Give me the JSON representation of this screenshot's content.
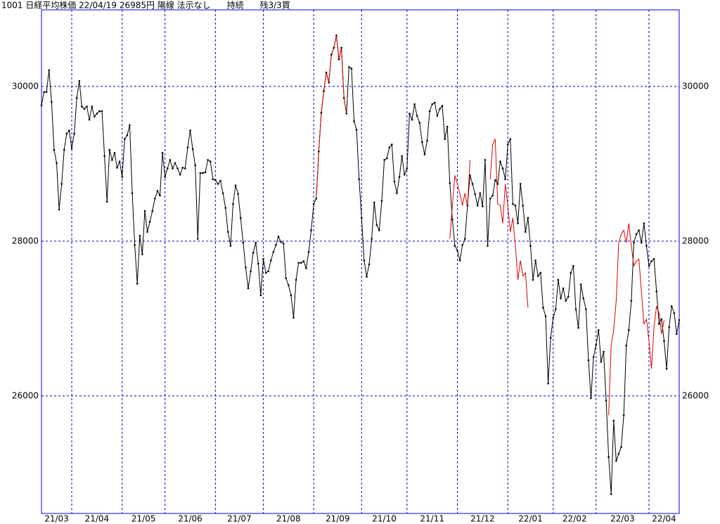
{
  "chart_data": {
    "type": "line",
    "title": "1001 日経平均株価 22/04/19 26985円 陽線 法示なし      持続      残3/3買",
    "ylim": [
      24480,
      30990
    ],
    "yticks": [
      26000,
      28000,
      30000
    ],
    "xlim": [
      0,
      253
    ],
    "xticks": [
      {
        "value": 0,
        "label": "21/03"
      },
      {
        "value": 12,
        "label": "21/04"
      },
      {
        "value": 32,
        "label": "21/05"
      },
      {
        "value": 49,
        "label": "21/06"
      },
      {
        "value": 69,
        "label": "21/07"
      },
      {
        "value": 88,
        "label": "21/08"
      },
      {
        "value": 108,
        "label": "21/09"
      },
      {
        "value": 127,
        "label": "21/10"
      },
      {
        "value": 145,
        "label": "21/11"
      },
      {
        "value": 165,
        "label": "21/12"
      },
      {
        "value": 185,
        "label": "22/01"
      },
      {
        "value": 203,
        "label": "22/02"
      },
      {
        "value": 220,
        "label": "22/03"
      },
      {
        "value": 241,
        "label": "22/04"
      }
    ],
    "grid": true,
    "grid_color": "#0000cc",
    "frame_color": "#0000ff",
    "dot_color": "#000000",
    "series": [
      {
        "color": "#000000",
        "values": [
          29755,
          29927,
          29930,
          30210,
          29800,
          29180,
          29010,
          28410,
          28740,
          29180,
          29390,
          29430,
          29200,
          29390,
          29850,
          30070,
          29740,
          29710,
          29740,
          29570,
          29740,
          29610,
          29650,
          29680,
          29680,
          29100,
          28510,
          29180,
          29050,
          29140,
          28950,
          29030,
          28830,
          29320,
          29370,
          29500,
          28620,
          27950,
          27450,
          28070,
          27830,
          28390,
          28120,
          28250,
          28390,
          28550,
          28650,
          28590,
          29140,
          28830,
          28940,
          29050,
          28940,
          29010,
          28940,
          28860,
          28950,
          28940,
          29210,
          29430,
          29190,
          28980,
          28030,
          28880,
          28880,
          28890,
          29050,
          29030,
          28800,
          28790,
          28740,
          28780,
          28620,
          28430,
          28120,
          27940,
          28480,
          28720,
          28610,
          28300,
          27980,
          27660,
          27390,
          27610,
          27850,
          27980,
          27710,
          27300,
          27770,
          27590,
          27610,
          27750,
          27860,
          27950,
          28060,
          27990,
          27970,
          27520,
          27430,
          27300,
          27010,
          27500,
          27720,
          27720,
          27740,
          27650,
          27860,
          28140,
          28480,
          28550,
          29160,
          29660,
          29940,
          30180,
          30050,
          30410,
          30500,
          30660,
          30350,
          30500,
          29850,
          29650,
          30250,
          30230,
          29550,
          29440,
          28800,
          28300,
          27750,
          27540,
          27700,
          28030,
          28500,
          28210,
          28140,
          28520,
          29050,
          29070,
          29210,
          29250,
          28770,
          28620,
          28830,
          29100,
          28860,
          28940,
          29650,
          29570,
          29770,
          29620,
          29530,
          29280,
          29120,
          29300,
          29680,
          29770,
          29790,
          29620,
          29710,
          29750,
          29320,
          29480,
          28750,
          28280,
          27940,
          27880,
          27750,
          27950,
          28030,
          28460,
          28850,
          28740,
          28610,
          28460,
          28620,
          28450,
          29050,
          27940,
          28550,
          28590,
          28790,
          28740,
          29030,
          28940,
          28800,
          29250,
          29320,
          28480,
          28460,
          28230,
          28740,
          28460,
          28120,
          28300,
          27940,
          27500,
          27750,
          27550,
          27590,
          27140,
          27030,
          26160,
          26750,
          27010,
          27120,
          27500,
          27260,
          27390,
          27230,
          27280,
          27590,
          27680,
          27120,
          26880,
          27440,
          27260,
          27120,
          26460,
          25970,
          26500,
          26660,
          26850,
          26440,
          26570,
          25940,
          25210,
          24730,
          25680,
          25160,
          25250,
          25340,
          25750,
          26650,
          26850,
          27230,
          27980,
          28090,
          28140,
          27980,
          28230,
          27940,
          27680,
          27740,
          27770,
          27350,
          26930,
          26990,
          26710,
          26350,
          26890,
          27160,
          27070,
          26800,
          26980
        ]
      },
      {
        "color": "#e00000",
        "values": [
          null,
          null,
          null,
          null,
          null,
          null,
          null,
          null,
          null,
          null,
          null,
          null,
          null,
          null,
          null,
          null,
          null,
          null,
          null,
          null,
          null,
          null,
          null,
          null,
          null,
          null,
          null,
          null,
          null,
          null,
          null,
          null,
          null,
          null,
          null,
          null,
          null,
          null,
          null,
          null,
          null,
          null,
          null,
          null,
          null,
          null,
          null,
          null,
          null,
          null,
          null,
          null,
          null,
          null,
          null,
          null,
          null,
          null,
          null,
          null,
          null,
          null,
          null,
          null,
          null,
          null,
          null,
          null,
          null,
          null,
          null,
          null,
          null,
          null,
          null,
          null,
          null,
          null,
          null,
          null,
          null,
          null,
          null,
          null,
          null,
          null,
          null,
          null,
          null,
          null,
          null,
          null,
          null,
          null,
          null,
          null,
          null,
          null,
          null,
          null,
          null,
          null,
          null,
          null,
          null,
          null,
          null,
          null,
          null,
          28550,
          29160,
          29660,
          29940,
          30180,
          30050,
          30410,
          30500,
          30660,
          30350,
          30500,
          29850,
          29650,
          null,
          null,
          null,
          null,
          null,
          null,
          null,
          null,
          null,
          null,
          null,
          null,
          null,
          null,
          null,
          null,
          null,
          null,
          null,
          null,
          null,
          null,
          null,
          null,
          null,
          null,
          null,
          null,
          null,
          null,
          null,
          null,
          null,
          null,
          null,
          null,
          null,
          null,
          null,
          null,
          28030,
          28460,
          28850,
          28740,
          28610,
          28460,
          28620,
          28450,
          29050,
          null,
          null,
          null,
          null,
          null,
          null,
          null,
          28800,
          29250,
          29320,
          28480,
          28460,
          28230,
          28740,
          28460,
          28120,
          28300,
          27940,
          27500,
          27750,
          27550,
          27590,
          27140,
          null,
          null,
          null,
          null,
          null,
          null,
          null,
          null,
          null,
          null,
          null,
          null,
          null,
          null,
          null,
          null,
          null,
          null,
          null,
          null,
          null,
          null,
          null,
          null,
          null,
          null,
          null,
          null,
          null,
          null,
          null,
          25750,
          26650,
          26850,
          27230,
          27980,
          28090,
          28140,
          27980,
          28230,
          27940,
          27680,
          27740,
          27770,
          27350,
          26930,
          26990,
          26710,
          26350,
          26890,
          27160,
          27070,
          26800,
          26980
        ]
      }
    ]
  }
}
